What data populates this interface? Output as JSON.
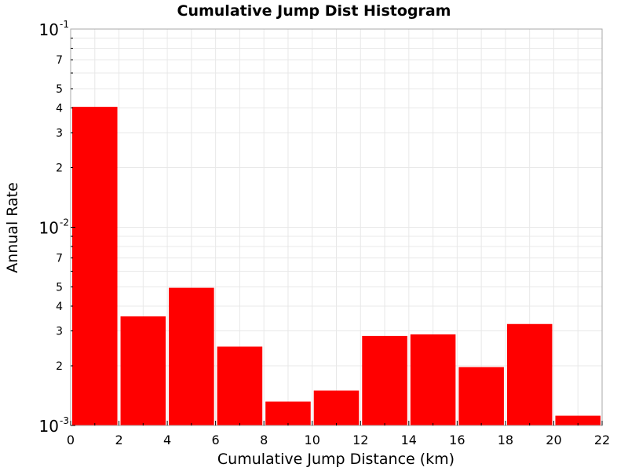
{
  "chart_data": {
    "type": "bar",
    "title": "Cumulative Jump Dist Histogram",
    "xlabel": "Cumulative Jump Distance (km)",
    "ylabel": "Annual Rate",
    "x_scale": "linear",
    "y_scale": "log",
    "xlim": [
      0,
      22
    ],
    "ylim": [
      0.001,
      0.1
    ],
    "bar_color": "#ff0000",
    "grid": true,
    "x_ticks": [
      0,
      2,
      4,
      6,
      8,
      10,
      12,
      14,
      16,
      18,
      20,
      22
    ],
    "x_tick_labels": [
      "0",
      "2",
      "4",
      "6",
      "8",
      "10",
      "12",
      "14",
      "16",
      "18",
      "20",
      "22"
    ],
    "y_decade_ticks": [
      {
        "value": 0.1,
        "base": "10",
        "exponent": "-1"
      },
      {
        "value": 0.01,
        "base": "10",
        "exponent": "-2"
      },
      {
        "value": 0.001,
        "base": "10",
        "exponent": "-3"
      }
    ],
    "y_minor_labeled": [
      {
        "value": 0.07,
        "label": "7"
      },
      {
        "value": 0.05,
        "label": "5"
      },
      {
        "value": 0.04,
        "label": "4"
      },
      {
        "value": 0.03,
        "label": "3"
      },
      {
        "value": 0.02,
        "label": "2"
      },
      {
        "value": 0.007,
        "label": "7"
      },
      {
        "value": 0.005,
        "label": "5"
      },
      {
        "value": 0.004,
        "label": "4"
      },
      {
        "value": 0.003,
        "label": "3"
      },
      {
        "value": 0.002,
        "label": "2"
      }
    ],
    "bins": [
      {
        "x_start": 0,
        "x_end": 2,
        "value": 0.0405
      },
      {
        "x_start": 2,
        "x_end": 4,
        "value": 0.00355
      },
      {
        "x_start": 4,
        "x_end": 6,
        "value": 0.00495
      },
      {
        "x_start": 6,
        "x_end": 8,
        "value": 0.0025
      },
      {
        "x_start": 8,
        "x_end": 10,
        "value": 0.00132
      },
      {
        "x_start": 10,
        "x_end": 12,
        "value": 0.0015
      },
      {
        "x_start": 12,
        "x_end": 14,
        "value": 0.00283
      },
      {
        "x_start": 14,
        "x_end": 16,
        "value": 0.00288
      },
      {
        "x_start": 16,
        "x_end": 18,
        "value": 0.00197
      },
      {
        "x_start": 18,
        "x_end": 20,
        "value": 0.00325
      },
      {
        "x_start": 20,
        "x_end": 22,
        "value": 0.00112
      }
    ]
  }
}
